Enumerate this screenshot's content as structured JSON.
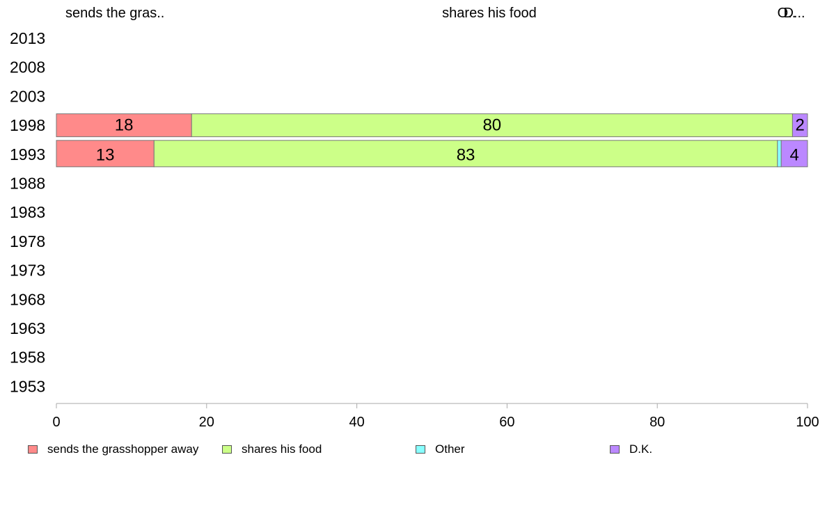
{
  "chart_data": {
    "type": "bar",
    "orientation": "horizontal",
    "stacked": true,
    "categories": [
      "2013",
      "2008",
      "2003",
      "1998",
      "1993",
      "1988",
      "1983",
      "1978",
      "1973",
      "1968",
      "1963",
      "1958",
      "1953"
    ],
    "series": [
      {
        "name": "sends the grasshopper away",
        "short": "sends the gras..",
        "color": "#ff8a8a",
        "values": [
          null,
          null,
          null,
          18,
          13,
          null,
          null,
          null,
          null,
          null,
          null,
          null,
          null
        ]
      },
      {
        "name": "shares his food",
        "short": "shares his food",
        "color": "#ccff88",
        "values": [
          null,
          null,
          null,
          80,
          83,
          null,
          null,
          null,
          null,
          null,
          null,
          null,
          null
        ]
      },
      {
        "name": "Other",
        "short": "O..",
        "color": "#88ffff",
        "values": [
          null,
          null,
          null,
          0,
          0.5,
          null,
          null,
          null,
          null,
          null,
          null,
          null,
          null
        ]
      },
      {
        "name": "D.K.",
        "short": "D...",
        "color": "#bb88ff",
        "values": [
          null,
          null,
          null,
          2,
          3.5,
          null,
          null,
          null,
          null,
          null,
          null,
          null,
          null
        ]
      }
    ],
    "data_labels": {
      "1998": [
        "18",
        "80",
        "",
        "2"
      ],
      "1993": [
        "13",
        "83",
        "",
        "4"
      ]
    },
    "xlim": [
      0,
      100
    ],
    "xticks": [
      "0",
      "20",
      "40",
      "60",
      "80",
      "100"
    ],
    "top_labels": [
      "sends the gras..",
      "shares his food",
      "O..",
      "D..."
    ],
    "legend_position": "bottom",
    "grid": false
  }
}
